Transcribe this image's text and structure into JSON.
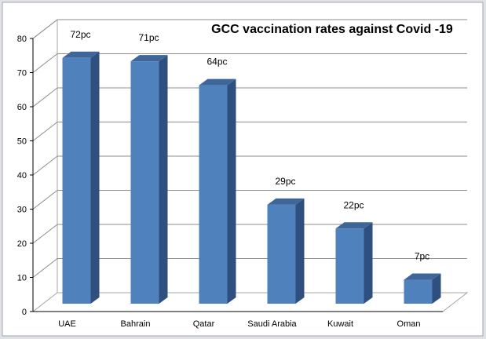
{
  "chart_data": {
    "type": "bar",
    "title": "GCC vaccination rates against Covid -19",
    "categories": [
      "UAE",
      "Bahrain",
      "Qatar",
      "Saudi Arabia",
      "Kuwait",
      "Oman"
    ],
    "values": [
      72,
      71,
      64,
      29,
      22,
      7
    ],
    "data_labels": [
      "72pc",
      "71pc",
      "64pc",
      "29pc",
      "22pc",
      "7pc"
    ],
    "ylim": [
      0,
      80
    ],
    "yticks": [
      "0",
      "10",
      "20",
      "30",
      "40",
      "50",
      "60",
      "70",
      "80"
    ],
    "grid": true,
    "legend": "none",
    "style": "3d-column",
    "bar_color": "#4f81bd"
  }
}
